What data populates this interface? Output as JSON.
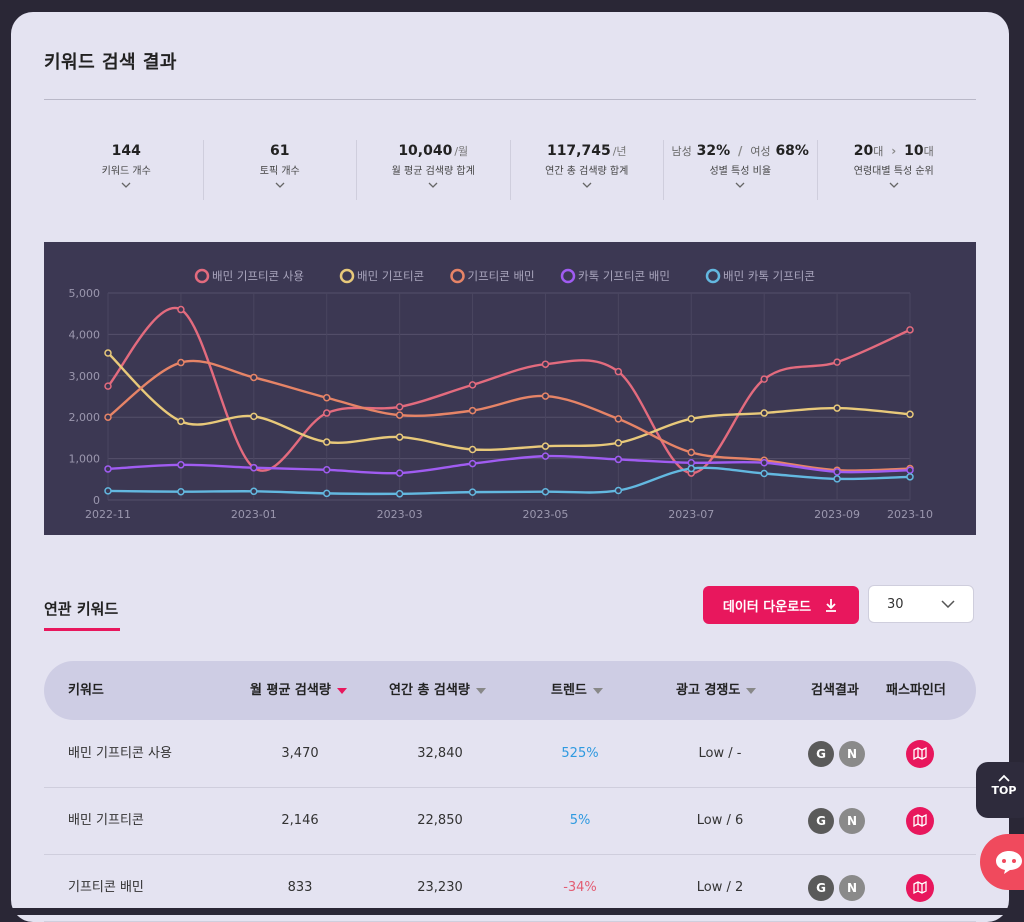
{
  "page_title": "키워드 검색 결과",
  "stats": [
    {
      "value": "144",
      "unit": "",
      "label": "키워드 개수"
    },
    {
      "value": "61",
      "unit": "",
      "label": "토픽 개수"
    },
    {
      "value": "10,040",
      "unit": "/월",
      "label": "월 평균 검색량 합계"
    },
    {
      "value": "117,745",
      "unit": "/년",
      "label": "연간 총 검색량 합계"
    },
    {
      "male_label": "남성",
      "male_value": "32%",
      "separator": "/",
      "female_label": "여성",
      "female_value": "68%",
      "label": "성별 특성 비율"
    },
    {
      "age1": "20",
      "age1_unit": "대",
      "arrow": "›",
      "age2": "10",
      "age2_unit": "대",
      "label": "연령대별 특성 순위"
    }
  ],
  "chart_data": {
    "type": "line",
    "x": [
      "2022-11",
      "2022-12",
      "2023-01",
      "2023-02",
      "2023-03",
      "2023-04",
      "2023-05",
      "2023-06",
      "2023-07",
      "2023-08",
      "2023-09",
      "2023-10"
    ],
    "x_tick_labels": [
      "2022-11",
      "2023-01",
      "2023-03",
      "2023-05",
      "2023-07",
      "2023-09",
      "2023-10"
    ],
    "x_tick_indices": [
      0,
      2,
      4,
      6,
      8,
      10,
      11
    ],
    "ylim": [
      0,
      5000
    ],
    "y_ticks": [
      "0",
      "1,000",
      "2,000",
      "3,000",
      "4,000",
      "5,000"
    ],
    "y_tick_values": [
      0,
      1000,
      2000,
      3000,
      4000,
      5000
    ],
    "legend_position": "top",
    "grid": true,
    "series": [
      {
        "name": "배민 기프티콘 사용",
        "color": "#e36b7e",
        "values": [
          2750,
          4600,
          780,
          2100,
          2250,
          2780,
          3280,
          3100,
          650,
          2920,
          3330,
          4110
        ]
      },
      {
        "name": "배민 기프티콘",
        "color": "#e8c97a",
        "values": [
          3550,
          1900,
          2020,
          1400,
          1520,
          1220,
          1300,
          1380,
          1960,
          2100,
          2220,
          2070
        ]
      },
      {
        "name": "기프티콘 배민",
        "color": "#e68467",
        "values": [
          2000,
          3320,
          2960,
          2470,
          2050,
          2160,
          2510,
          1960,
          1150,
          960,
          720,
          760
        ]
      },
      {
        "name": "카톡 기프티콘 배민",
        "color": "#a05cf2",
        "values": [
          750,
          850,
          780,
          730,
          650,
          880,
          1060,
          980,
          900,
          900,
          680,
          720
        ]
      },
      {
        "name": "배민 카톡 기프티콘",
        "color": "#63b8e0",
        "values": [
          220,
          200,
          210,
          160,
          150,
          190,
          200,
          230,
          760,
          640,
          510,
          560
        ]
      }
    ]
  },
  "related": {
    "title": "연관 키워드",
    "download_label": "데이터 다운로드",
    "page_size": "30"
  },
  "table": {
    "headers": {
      "keyword": "키워드",
      "monthly": "월 평균 검색량",
      "yearly": "연간 총 검색량",
      "trend": "트렌드",
      "ad": "광고 경쟁도",
      "search": "검색결과",
      "pathfinder": "패스파인더"
    },
    "rows": [
      {
        "keyword": "배민 기프티콘 사용",
        "monthly": "3,470",
        "yearly": "32,840",
        "trend": "525%",
        "trend_dir": "up",
        "ad": "Low / -"
      },
      {
        "keyword": "배민 기프티콘",
        "monthly": "2,146",
        "yearly": "22,850",
        "trend": "5%",
        "trend_dir": "up",
        "ad": "Low / 6"
      },
      {
        "keyword": "기프티콘 배민",
        "monthly": "833",
        "yearly": "23,230",
        "trend": "-34%",
        "trend_dir": "down",
        "ad": "Low / 2"
      }
    ],
    "badge_g": "G",
    "badge_n": "N"
  },
  "float": {
    "top_label": "TOP"
  },
  "colors": {
    "accent": "#e8175d",
    "panel": "#3c3853",
    "card": "#e4e3f1"
  }
}
